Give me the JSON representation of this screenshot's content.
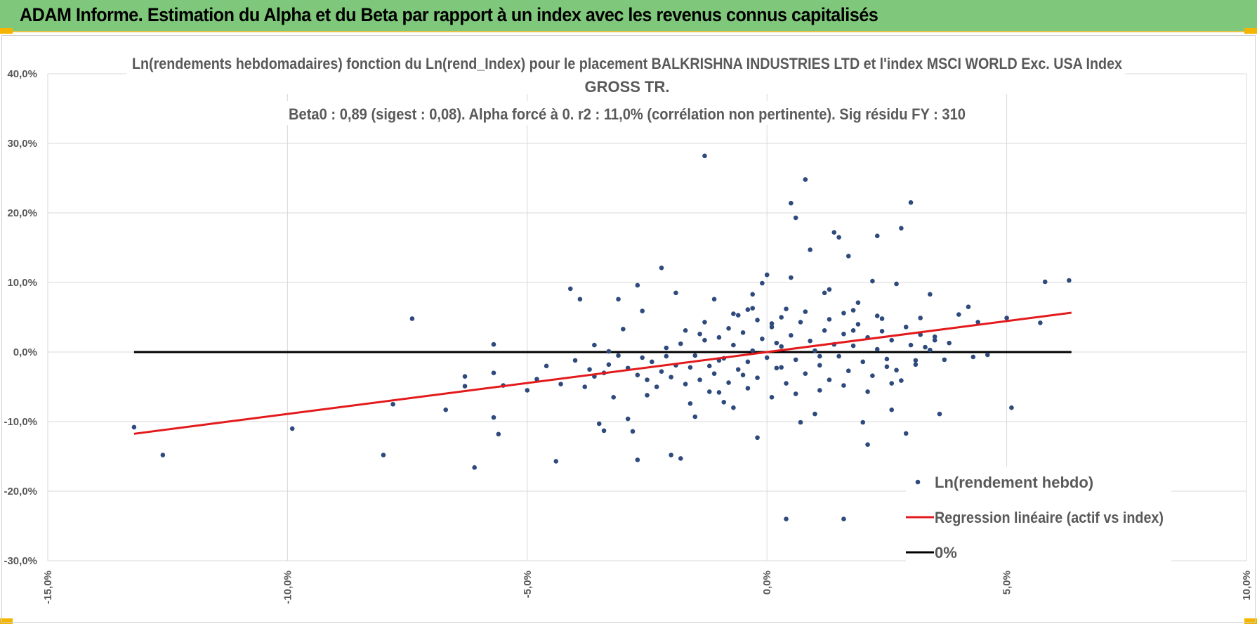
{
  "banner": {
    "title": "ADAM Informe. Estimation du Alpha et du Beta par rapport à un index avec les revenus connus capitalisés"
  },
  "colors": {
    "banner_bg": "#7fc77a",
    "points": "#2e4a7d",
    "regression": "#e31a1c",
    "zero_line": "#000000",
    "grid": "#d9d9d9",
    "text": "#595959"
  },
  "chart_data": {
    "type": "scatter",
    "title_lines": [
      "Ln(rendements hebdomadaires) fonction du Ln(rend_Index) pour le placement BALKRISHNA INDUSTRIES LTD et l'index MSCI WORLD Exc. USA Index",
      "GROSS TR.",
      "Beta0 : 0,89  (sigest : 0,08). Alpha forcé à 0. r2 : 11,0% (corrélation non pertinente). Sig résidu FY : 310"
    ],
    "xlim": [
      -0.15,
      0.1
    ],
    "ylim": [
      -0.3,
      0.4
    ],
    "x_ticks": [
      -0.15,
      -0.1,
      -0.05,
      0.0,
      0.05,
      0.1
    ],
    "x_tick_labels": [
      "-15,0%",
      "-10,0%",
      "-5,0%",
      "0,0%",
      "5,0%",
      "10,0%"
    ],
    "y_ticks": [
      -0.3,
      -0.2,
      -0.1,
      0.0,
      0.1,
      0.2,
      0.3,
      0.4
    ],
    "y_tick_labels": [
      "-30,0%",
      "-20,0%",
      "-10,0%",
      "0,0%",
      "10,0%",
      "20,0%",
      "30,0%",
      "40,0%"
    ],
    "beta": 0.89,
    "regression_x_range": [
      -0.132,
      0.0635
    ],
    "zero_x_range": [
      -0.132,
      0.0635
    ],
    "legend": [
      {
        "key": "points",
        "label": "Ln(rendement hebdo)"
      },
      {
        "key": "regression",
        "label": "Regression linéaire (actif vs index)"
      },
      {
        "key": "zero",
        "label": "0%"
      }
    ],
    "points": [
      [
        -0.132,
        -0.108
      ],
      [
        -0.126,
        -0.148
      ],
      [
        -0.099,
        -0.11
      ],
      [
        -0.08,
        -0.148
      ],
      [
        -0.078,
        -0.075
      ],
      [
        -0.074,
        0.048
      ],
      [
        -0.067,
        -0.083
      ],
      [
        -0.063,
        -0.035
      ],
      [
        -0.063,
        -0.049
      ],
      [
        -0.061,
        -0.166
      ],
      [
        -0.057,
        0.011
      ],
      [
        -0.057,
        -0.094
      ],
      [
        -0.057,
        -0.03
      ],
      [
        -0.056,
        -0.118
      ],
      [
        -0.05,
        -0.055
      ],
      [
        -0.048,
        -0.039
      ],
      [
        -0.044,
        -0.157
      ],
      [
        -0.043,
        -0.046
      ],
      [
        -0.041,
        0.091
      ],
      [
        -0.039,
        0.076
      ],
      [
        -0.038,
        -0.05
      ],
      [
        -0.036,
        -0.035
      ],
      [
        -0.035,
        -0.103
      ],
      [
        -0.034,
        -0.113
      ],
      [
        -0.033,
        0.001
      ],
      [
        -0.032,
        -0.065
      ],
      [
        -0.031,
        0.076
      ],
      [
        -0.03,
        0.033
      ],
      [
        -0.029,
        -0.096
      ],
      [
        -0.028,
        -0.114
      ],
      [
        -0.027,
        -0.155
      ],
      [
        -0.027,
        0.096
      ],
      [
        -0.026,
        0.059
      ],
      [
        -0.025,
        -0.062
      ],
      [
        -0.022,
        0.121
      ],
      [
        -0.021,
        -0.006
      ],
      [
        -0.02,
        -0.148
      ],
      [
        -0.019,
        0.085
      ],
      [
        -0.018,
        -0.153
      ],
      [
        -0.017,
        0.031
      ],
      [
        -0.016,
        -0.074
      ],
      [
        -0.015,
        -0.093
      ],
      [
        -0.014,
        0.026
      ],
      [
        -0.013,
        0.282
      ],
      [
        -0.012,
        -0.057
      ],
      [
        -0.011,
        0.076
      ],
      [
        -0.01,
        -0.012
      ],
      [
        -0.009,
        -0.072
      ],
      [
        -0.008,
        0.034
      ],
      [
        -0.007,
        -0.08
      ],
      [
        -0.006,
        0.053
      ],
      [
        -0.005,
        -0.033
      ],
      [
        -0.004,
        0.061
      ],
      [
        -0.003,
        0.063
      ],
      [
        -0.003,
        0.083
      ],
      [
        -0.002,
        -0.123
      ],
      [
        -0.001,
        0.099
      ],
      [
        0.0,
        0.111
      ],
      [
        0.001,
        0.041
      ],
      [
        0.002,
        0.013
      ],
      [
        0.003,
        -0.022
      ],
      [
        0.004,
        0.062
      ],
      [
        0.005,
        0.107
      ],
      [
        0.005,
        0.214
      ],
      [
        0.006,
        0.193
      ],
      [
        0.007,
        -0.101
      ],
      [
        0.008,
        0.248
      ],
      [
        0.009,
        0.147
      ],
      [
        0.01,
        -0.089
      ],
      [
        0.011,
        -0.006
      ],
      [
        0.012,
        0.085
      ],
      [
        0.013,
        0.09
      ],
      [
        0.014,
        0.172
      ],
      [
        0.015,
        0.165
      ],
      [
        0.016,
        0.056
      ],
      [
        0.017,
        0.138
      ],
      [
        0.018,
        0.031
      ],
      [
        0.019,
        0.071
      ],
      [
        0.02,
        -0.101
      ],
      [
        0.021,
        -0.133
      ],
      [
        0.022,
        0.102
      ],
      [
        0.023,
        0.167
      ],
      [
        0.024,
        0.048
      ],
      [
        0.025,
        -0.021
      ],
      [
        0.026,
        -0.083
      ],
      [
        0.027,
        0.098
      ],
      [
        0.028,
        -0.041
      ],
      [
        0.028,
        0.178
      ],
      [
        0.029,
        -0.117
      ],
      [
        0.03,
        0.215
      ],
      [
        0.031,
        -0.012
      ],
      [
        0.032,
        0.049
      ],
      [
        0.033,
        0.007
      ],
      [
        0.034,
        0.083
      ],
      [
        0.035,
        0.022
      ],
      [
        0.036,
        -0.089
      ],
      [
        0.038,
        0.013
      ],
      [
        0.04,
        0.054
      ],
      [
        0.042,
        0.065
      ],
      [
        0.043,
        -0.007
      ],
      [
        0.044,
        0.043
      ],
      [
        0.046,
        -0.004
      ],
      [
        0.05,
        0.049
      ],
      [
        0.051,
        -0.08
      ],
      [
        0.057,
        0.042
      ],
      [
        0.058,
        0.101
      ],
      [
        0.063,
        0.103
      ],
      [
        0.004,
        -0.24
      ],
      [
        0.016,
        -0.24
      ],
      [
        -0.055,
        -0.048
      ],
      [
        -0.046,
        -0.02
      ],
      [
        -0.04,
        -0.012
      ],
      [
        -0.037,
        -0.025
      ],
      [
        -0.036,
        0.01
      ],
      [
        -0.034,
        -0.03
      ],
      [
        -0.033,
        -0.018
      ],
      [
        -0.031,
        -0.005
      ],
      [
        -0.029,
        -0.023
      ],
      [
        -0.027,
        -0.033
      ],
      [
        -0.026,
        -0.008
      ],
      [
        -0.025,
        -0.04
      ],
      [
        -0.024,
        -0.014
      ],
      [
        -0.023,
        -0.05
      ],
      [
        -0.022,
        -0.028
      ],
      [
        -0.021,
        0.006
      ],
      [
        -0.02,
        -0.036
      ],
      [
        -0.019,
        -0.019
      ],
      [
        -0.018,
        0.012
      ],
      [
        -0.017,
        -0.046
      ],
      [
        -0.016,
        -0.022
      ],
      [
        -0.015,
        -0.005
      ],
      [
        -0.014,
        -0.04
      ],
      [
        -0.013,
        0.017
      ],
      [
        -0.012,
        -0.02
      ],
      [
        -0.011,
        -0.031
      ],
      [
        -0.01,
        0.021
      ],
      [
        -0.009,
        -0.009
      ],
      [
        -0.008,
        -0.044
      ],
      [
        -0.007,
        0.01
      ],
      [
        -0.006,
        -0.025
      ],
      [
        -0.005,
        0.028
      ],
      [
        -0.004,
        -0.014
      ],
      [
        -0.003,
        0.002
      ],
      [
        -0.002,
        -0.037
      ],
      [
        -0.001,
        0.019
      ],
      [
        0.0,
        -0.008
      ],
      [
        0.001,
        0.036
      ],
      [
        0.002,
        -0.023
      ],
      [
        0.003,
        0.008
      ],
      [
        0.004,
        -0.045
      ],
      [
        0.005,
        0.024
      ],
      [
        0.006,
        -0.011
      ],
      [
        0.007,
        0.043
      ],
      [
        0.008,
        -0.031
      ],
      [
        0.009,
        0.016
      ],
      [
        0.01,
        0.002
      ],
      [
        0.011,
        -0.019
      ],
      [
        0.012,
        0.031
      ],
      [
        0.013,
        -0.04
      ],
      [
        0.014,
        0.011
      ],
      [
        0.015,
        -0.006
      ],
      [
        0.016,
        0.026
      ],
      [
        0.017,
        -0.027
      ],
      [
        0.018,
        0.009
      ],
      [
        0.019,
        0.04
      ],
      [
        0.02,
        -0.014
      ],
      [
        0.021,
        0.021
      ],
      [
        0.022,
        -0.034
      ],
      [
        0.023,
        0.004
      ],
      [
        0.024,
        0.03
      ],
      [
        0.025,
        -0.01
      ],
      [
        0.026,
        0.017
      ],
      [
        0.027,
        -0.026
      ],
      [
        0.029,
        0.036
      ],
      [
        0.03,
        0.01
      ],
      [
        0.031,
        -0.018
      ],
      [
        0.032,
        0.025
      ],
      [
        0.034,
        0.003
      ],
      [
        0.035,
        0.017
      ],
      [
        0.037,
        -0.011
      ],
      [
        -0.013,
        0.043
      ],
      [
        -0.007,
        0.055
      ],
      [
        -0.002,
        0.046
      ],
      [
        0.003,
        0.05
      ],
      [
        0.008,
        0.058
      ],
      [
        0.013,
        0.047
      ],
      [
        0.018,
        0.06
      ],
      [
        0.023,
        0.052
      ],
      [
        -0.01,
        -0.058
      ],
      [
        -0.004,
        -0.052
      ],
      [
        0.001,
        -0.065
      ],
      [
        0.006,
        -0.06
      ],
      [
        0.011,
        -0.055
      ],
      [
        0.016,
        -0.048
      ],
      [
        0.021,
        -0.057
      ],
      [
        0.026,
        -0.045
      ]
    ]
  }
}
